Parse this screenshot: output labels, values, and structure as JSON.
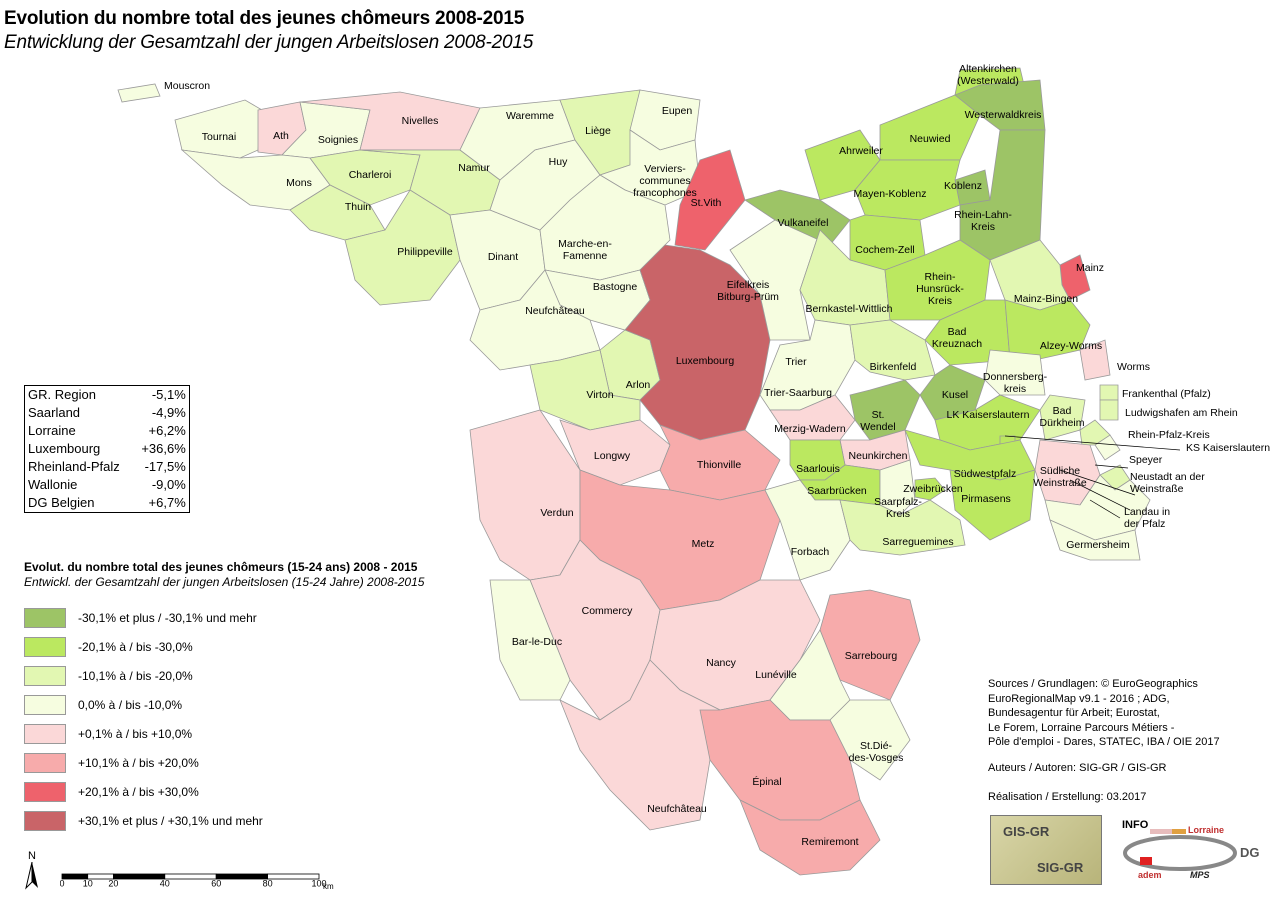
{
  "title": "Evolution du nombre total des jeunes chômeurs 2008-2015",
  "subtitle": "Entwicklung der Gesamtzahl der jungen Arbeitslosen 2008-2015",
  "stats": [
    {
      "region": "GR. Region",
      "value": "-5,1%"
    },
    {
      "region": "Saarland",
      "value": "-4,9%"
    },
    {
      "region": "Lorraine",
      "value": "+6,2%"
    },
    {
      "region": "Luxembourg",
      "value": "+36,6%"
    },
    {
      "region": "Rheinland-Pfalz",
      "value": "-17,5%"
    },
    {
      "region": "Wallonie",
      "value": "-9,0%"
    },
    {
      "region": "DG Belgien",
      "value": "+6,7%"
    }
  ],
  "legend": {
    "title_fr": "Evolut. du nombre total des jeunes chômeurs (15-24 ans) 2008 - 2015",
    "title_de": "Entwickl. der Gesamtzahl der jungen Arbeitslosen (15-24 Jahre) 2008-2015",
    "classes": [
      {
        "label": "-30,1% et plus / -30,1% und mehr",
        "color": "#9dc466"
      },
      {
        "label": "-20,1% à / bis -30,0%",
        "color": "#bbe860"
      },
      {
        "label": "-10,1% à / bis -20,0%",
        "color": "#e2f7b2"
      },
      {
        "label": "0,0% à / bis -10,0%",
        "color": "#f6fde0"
      },
      {
        "label": "+0,1% à / bis +10,0%",
        "color": "#fbd8d8"
      },
      {
        "label": "+10,1% à / bis +20,0%",
        "color": "#f7abab"
      },
      {
        "label": "+20,1% à / bis +30,0%",
        "color": "#ee626c"
      },
      {
        "label": "+30,1% et plus / +30,1% und mehr",
        "color": "#c96468"
      }
    ]
  },
  "sources": [
    "Sources / Grundlagen: © EuroGeographics",
    "EuroRegionalMap v9.1 - 2016 ; ADG,",
    "Bundesagentur für Arbeit; Eurostat,",
    "Le Forem, Lorraine Parcours Métiers -",
    "Pôle d'emploi - Dares, STATEC, IBA / OIE 2017"
  ],
  "authors": "Auteurs / Autoren: SIG-GR / GIS-GR",
  "realisation": "Réalisation / Erstellung: 03.2017",
  "logos": {
    "gis": "GIS-GR",
    "sig": "SIG-GR",
    "info": "INFO",
    "adem": "adem",
    "lorraine": "Lorraine",
    "dg": "DG",
    "mps": "MPS"
  },
  "north": "N",
  "scale": {
    "ticks": [
      "0",
      "10",
      "20",
      "40",
      "60",
      "80",
      "100"
    ],
    "unit": "km"
  },
  "regions": [
    {
      "name": "Mouscron",
      "cls": 3
    },
    {
      "name": "Tournai",
      "cls": 3
    },
    {
      "name": "Ath",
      "cls": 4
    },
    {
      "name": "Soignies",
      "cls": 3
    },
    {
      "name": "Mons",
      "cls": 3
    },
    {
      "name": "Nivelles",
      "cls": 4
    },
    {
      "name": "Charleroi",
      "cls": 2
    },
    {
      "name": "Thuin",
      "cls": 2
    },
    {
      "name": "Namur",
      "cls": 2
    },
    {
      "name": "Philippeville",
      "cls": 2
    },
    {
      "name": "Dinant",
      "cls": 3
    },
    {
      "name": "Waremme",
      "cls": 3
    },
    {
      "name": "Huy",
      "cls": 3
    },
    {
      "name": "Liège",
      "cls": 2
    },
    {
      "name": "Eupen",
      "cls": 3
    },
    {
      "name": "Verviers-\ncommunes\nfrancophones",
      "cls": 3
    },
    {
      "name": "St.Vith",
      "cls": 6
    },
    {
      "name": "Marche-en-\nFamenne",
      "cls": 3
    },
    {
      "name": "Bastogne",
      "cls": 3
    },
    {
      "name": "Neufchâteau",
      "cls": 3
    },
    {
      "name": "Arlon",
      "cls": 2
    },
    {
      "name": "Virton",
      "cls": 2
    },
    {
      "name": "Luxembourg",
      "cls": 7
    },
    {
      "name": "Eifelkreis\nBitburg-Prüm",
      "cls": 3
    },
    {
      "name": "Vulkaneifel",
      "cls": 0
    },
    {
      "name": "Ahrweiler",
      "cls": 1
    },
    {
      "name": "Altenkirchen\n(Westerwald)",
      "cls": 1
    },
    {
      "name": "Neuwied",
      "cls": 1
    },
    {
      "name": "Westerwaldkreis",
      "cls": 0
    },
    {
      "name": "Koblenz",
      "cls": 0
    },
    {
      "name": "Mayen-Koblenz",
      "cls": 1
    },
    {
      "name": "Rhein-Lahn-\nKreis",
      "cls": 0
    },
    {
      "name": "Cochem-Zell",
      "cls": 1
    },
    {
      "name": "Bernkastel-Wittlich",
      "cls": 2
    },
    {
      "name": "Rhein-\nHunsrück-\nKreis",
      "cls": 1
    },
    {
      "name": "Mainz",
      "cls": 6
    },
    {
      "name": "Mainz-Bingen",
      "cls": 2
    },
    {
      "name": "Bad\nKreuznach",
      "cls": 1
    },
    {
      "name": "Alzey-Worms",
      "cls": 1
    },
    {
      "name": "Worms",
      "cls": 4
    },
    {
      "name": "Trier",
      "cls": 3
    },
    {
      "name": "Trier-Saarburg",
      "cls": 3
    },
    {
      "name": "Birkenfeld",
      "cls": 2
    },
    {
      "name": "Donnersberg-\nkreis",
      "cls": 3
    },
    {
      "name": "Kusel",
      "cls": 0
    },
    {
      "name": "Frankenthal (Pfalz)",
      "cls": 2
    },
    {
      "name": "Ludwigshafen am Rhein",
      "cls": 2
    },
    {
      "name": "St.\nWendel",
      "cls": 0
    },
    {
      "name": "LK Kaiserslautern",
      "cls": 1
    },
    {
      "name": "Bad\nDürkheim",
      "cls": 2
    },
    {
      "name": "Rhein-Pfalz-Kreis",
      "cls": 2
    },
    {
      "name": "KS Kaiserslautern",
      "cls": 1
    },
    {
      "name": "Merzig-Wadern",
      "cls": 4
    },
    {
      "name": "Neunkirchen",
      "cls": 4
    },
    {
      "name": "Saarlouis",
      "cls": 1
    },
    {
      "name": "Saarbrücken",
      "cls": 1
    },
    {
      "name": "Saarpfalz-\nKreis",
      "cls": 3
    },
    {
      "name": "Zweibrücken",
      "cls": 1
    },
    {
      "name": "Südwestpfalz",
      "cls": 1
    },
    {
      "name": "Pirmasens",
      "cls": 1
    },
    {
      "name": "Südliche\nWeinstraße",
      "cls": 4
    },
    {
      "name": "Speyer",
      "cls": 3
    },
    {
      "name": "Neustadt an der\nWeinstraße",
      "cls": 2
    },
    {
      "name": "Landau in\nder Pfalz",
      "cls": 3
    },
    {
      "name": "Germersheim",
      "cls": 3
    },
    {
      "name": "Longwy",
      "cls": 4
    },
    {
      "name": "Thionville",
      "cls": 5
    },
    {
      "name": "Verdun",
      "cls": 4
    },
    {
      "name": "Metz",
      "cls": 5
    },
    {
      "name": "Forbach",
      "cls": 3
    },
    {
      "name": "Sarreguemines",
      "cls": 2
    },
    {
      "name": "Commercy",
      "cls": 4
    },
    {
      "name": "Bar-le-Duc",
      "cls": 3
    },
    {
      "name": "Nancy",
      "cls": 4
    },
    {
      "name": "Sarrebourg",
      "cls": 5
    },
    {
      "name": "Lunéville",
      "cls": 3
    },
    {
      "name": "St.Dié-\ndes-Vosges",
      "cls": 3
    },
    {
      "name": "Neufchâteau",
      "cls": 4
    },
    {
      "name": "Épinal",
      "cls": 5
    },
    {
      "name": "Remiremont",
      "cls": 5
    }
  ]
}
